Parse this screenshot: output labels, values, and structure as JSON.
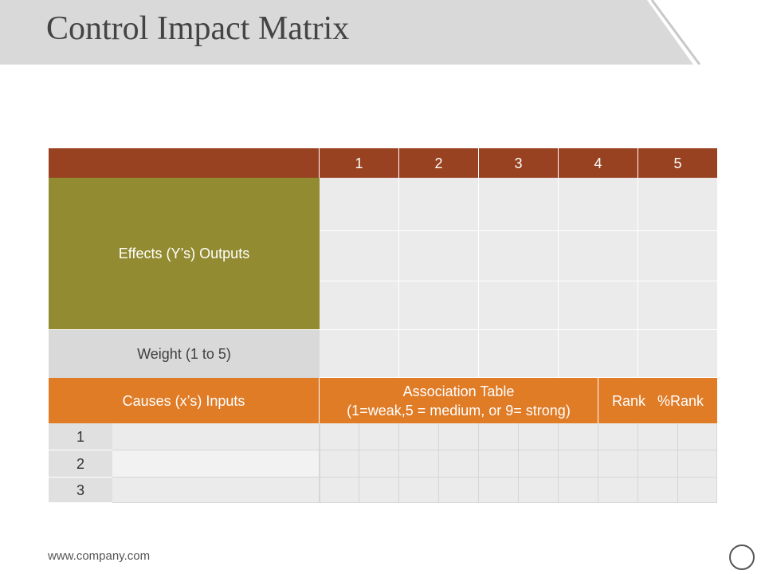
{
  "slide": {
    "title": "Control Impact Matrix",
    "footer_url": "www.company.com"
  },
  "matrix": {
    "column_numbers": [
      "1",
      "2",
      "3",
      "4",
      "5"
    ],
    "effects_label": "Effects (Y’s) Outputs",
    "weight_label": "Weight (1 to 5)",
    "causes_label": "Causes (x’s) Inputs",
    "association_line1": "Association Table",
    "association_line2": "(1=weak,5 = medium, or 9= strong)",
    "rank_label": "Rank   %Rank",
    "row_numbers": [
      "1",
      "2",
      "3"
    ]
  },
  "colors": {
    "header_brown": "#984221",
    "effects_olive": "#938b31",
    "causes_orange": "#e07b26",
    "weight_gray": "#d9d9d9",
    "cell_gray": "#ebebeb",
    "title_bar_gray": "#d9d9d9"
  }
}
